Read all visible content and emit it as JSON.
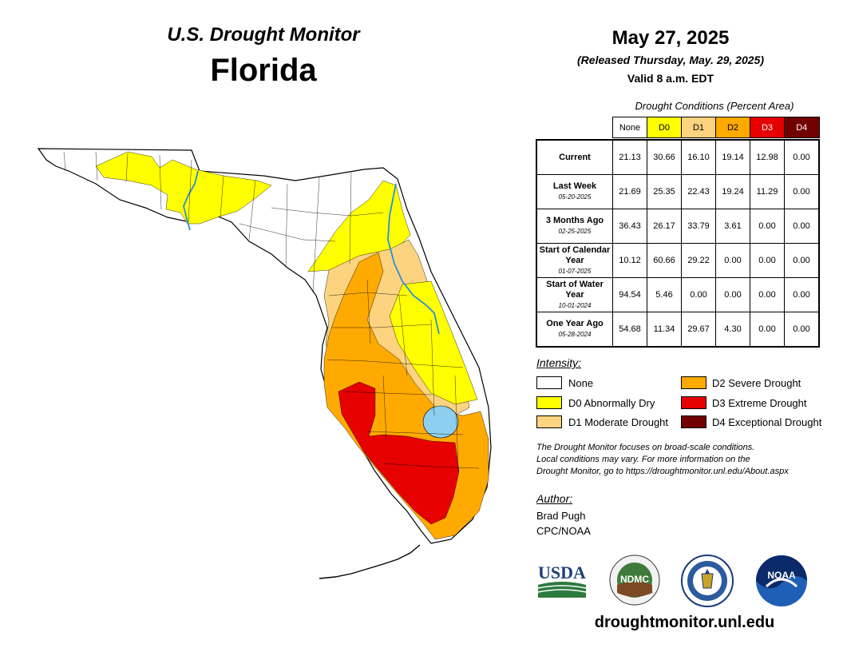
{
  "header": {
    "monitor_title": "U.S. Drought Monitor",
    "state": "Florida",
    "date": "May 27, 2025",
    "released": "(Released Thursday, May. 29, 2025)",
    "valid": "Valid 8 a.m. EDT"
  },
  "table": {
    "caption": "Drought Conditions (Percent Area)",
    "columns": [
      {
        "label": "None",
        "color": "#ffffff",
        "text_color": "#000000"
      },
      {
        "label": "D0",
        "color": "#ffff00",
        "text_color": "#000000"
      },
      {
        "label": "D1",
        "color": "#fcd37f",
        "text_color": "#000000"
      },
      {
        "label": "D2",
        "color": "#ffaa00",
        "text_color": "#000000"
      },
      {
        "label": "D3",
        "color": "#e60000",
        "text_color": "#ffffff"
      },
      {
        "label": "D4",
        "color": "#730000",
        "text_color": "#ffffff"
      }
    ],
    "rows": [
      {
        "label": "Current",
        "sub": "",
        "values": [
          "21.13",
          "30.66",
          "16.10",
          "19.14",
          "12.98",
          "0.00"
        ]
      },
      {
        "label": "Last Week",
        "sub": "05-20-2025",
        "values": [
          "21.69",
          "25.35",
          "22.43",
          "19.24",
          "11.29",
          "0.00"
        ]
      },
      {
        "label": "3 Months Ago",
        "sub": "02-25-2025",
        "values": [
          "36.43",
          "26.17",
          "33.79",
          "3.61",
          "0.00",
          "0.00"
        ]
      },
      {
        "label": "Start of Calendar Year",
        "sub": "01-07-2025",
        "values": [
          "10.12",
          "60.66",
          "29.22",
          "0.00",
          "0.00",
          "0.00"
        ]
      },
      {
        "label": "Start of Water Year",
        "sub": "10-01-2024",
        "values": [
          "94.54",
          "5.46",
          "0.00",
          "0.00",
          "0.00",
          "0.00"
        ]
      },
      {
        "label": "One Year Ago",
        "sub": "05-28-2024",
        "values": [
          "54.68",
          "11.34",
          "29.67",
          "4.30",
          "0.00",
          "0.00"
        ]
      }
    ]
  },
  "legend": {
    "title": "Intensity:",
    "items": [
      {
        "label": "None",
        "color": "#ffffff"
      },
      {
        "label": "D0 Abnormally Dry",
        "color": "#ffff00"
      },
      {
        "label": "D1 Moderate Drought",
        "color": "#fcd37f"
      },
      {
        "label": "D2 Severe Drought",
        "color": "#ffaa00"
      },
      {
        "label": "D3 Extreme Drought",
        "color": "#e60000"
      },
      {
        "label": "D4 Exceptional Drought",
        "color": "#730000"
      }
    ]
  },
  "note": {
    "line1": "The Drought Monitor focuses on broad-scale conditions.",
    "line2": "Local conditions may vary. For more information on the",
    "line3": "Drought Monitor, go to https://droughtmonitor.unl.edu/About.aspx"
  },
  "author": {
    "title": "Author:",
    "name": "Brad Pugh",
    "org": "CPC/NOAA"
  },
  "logos": {
    "usda": "USDA",
    "ndmc": "NDMC",
    "noaa": "NOAA"
  },
  "website": "droughtmonitor.unl.edu",
  "map_colors": {
    "none": "#ffffff",
    "d0": "#ffff00",
    "d1": "#fcd37f",
    "d2": "#ffaa00",
    "d3": "#e60000",
    "water": "#8ecfef",
    "river": "#2a8fd6"
  }
}
